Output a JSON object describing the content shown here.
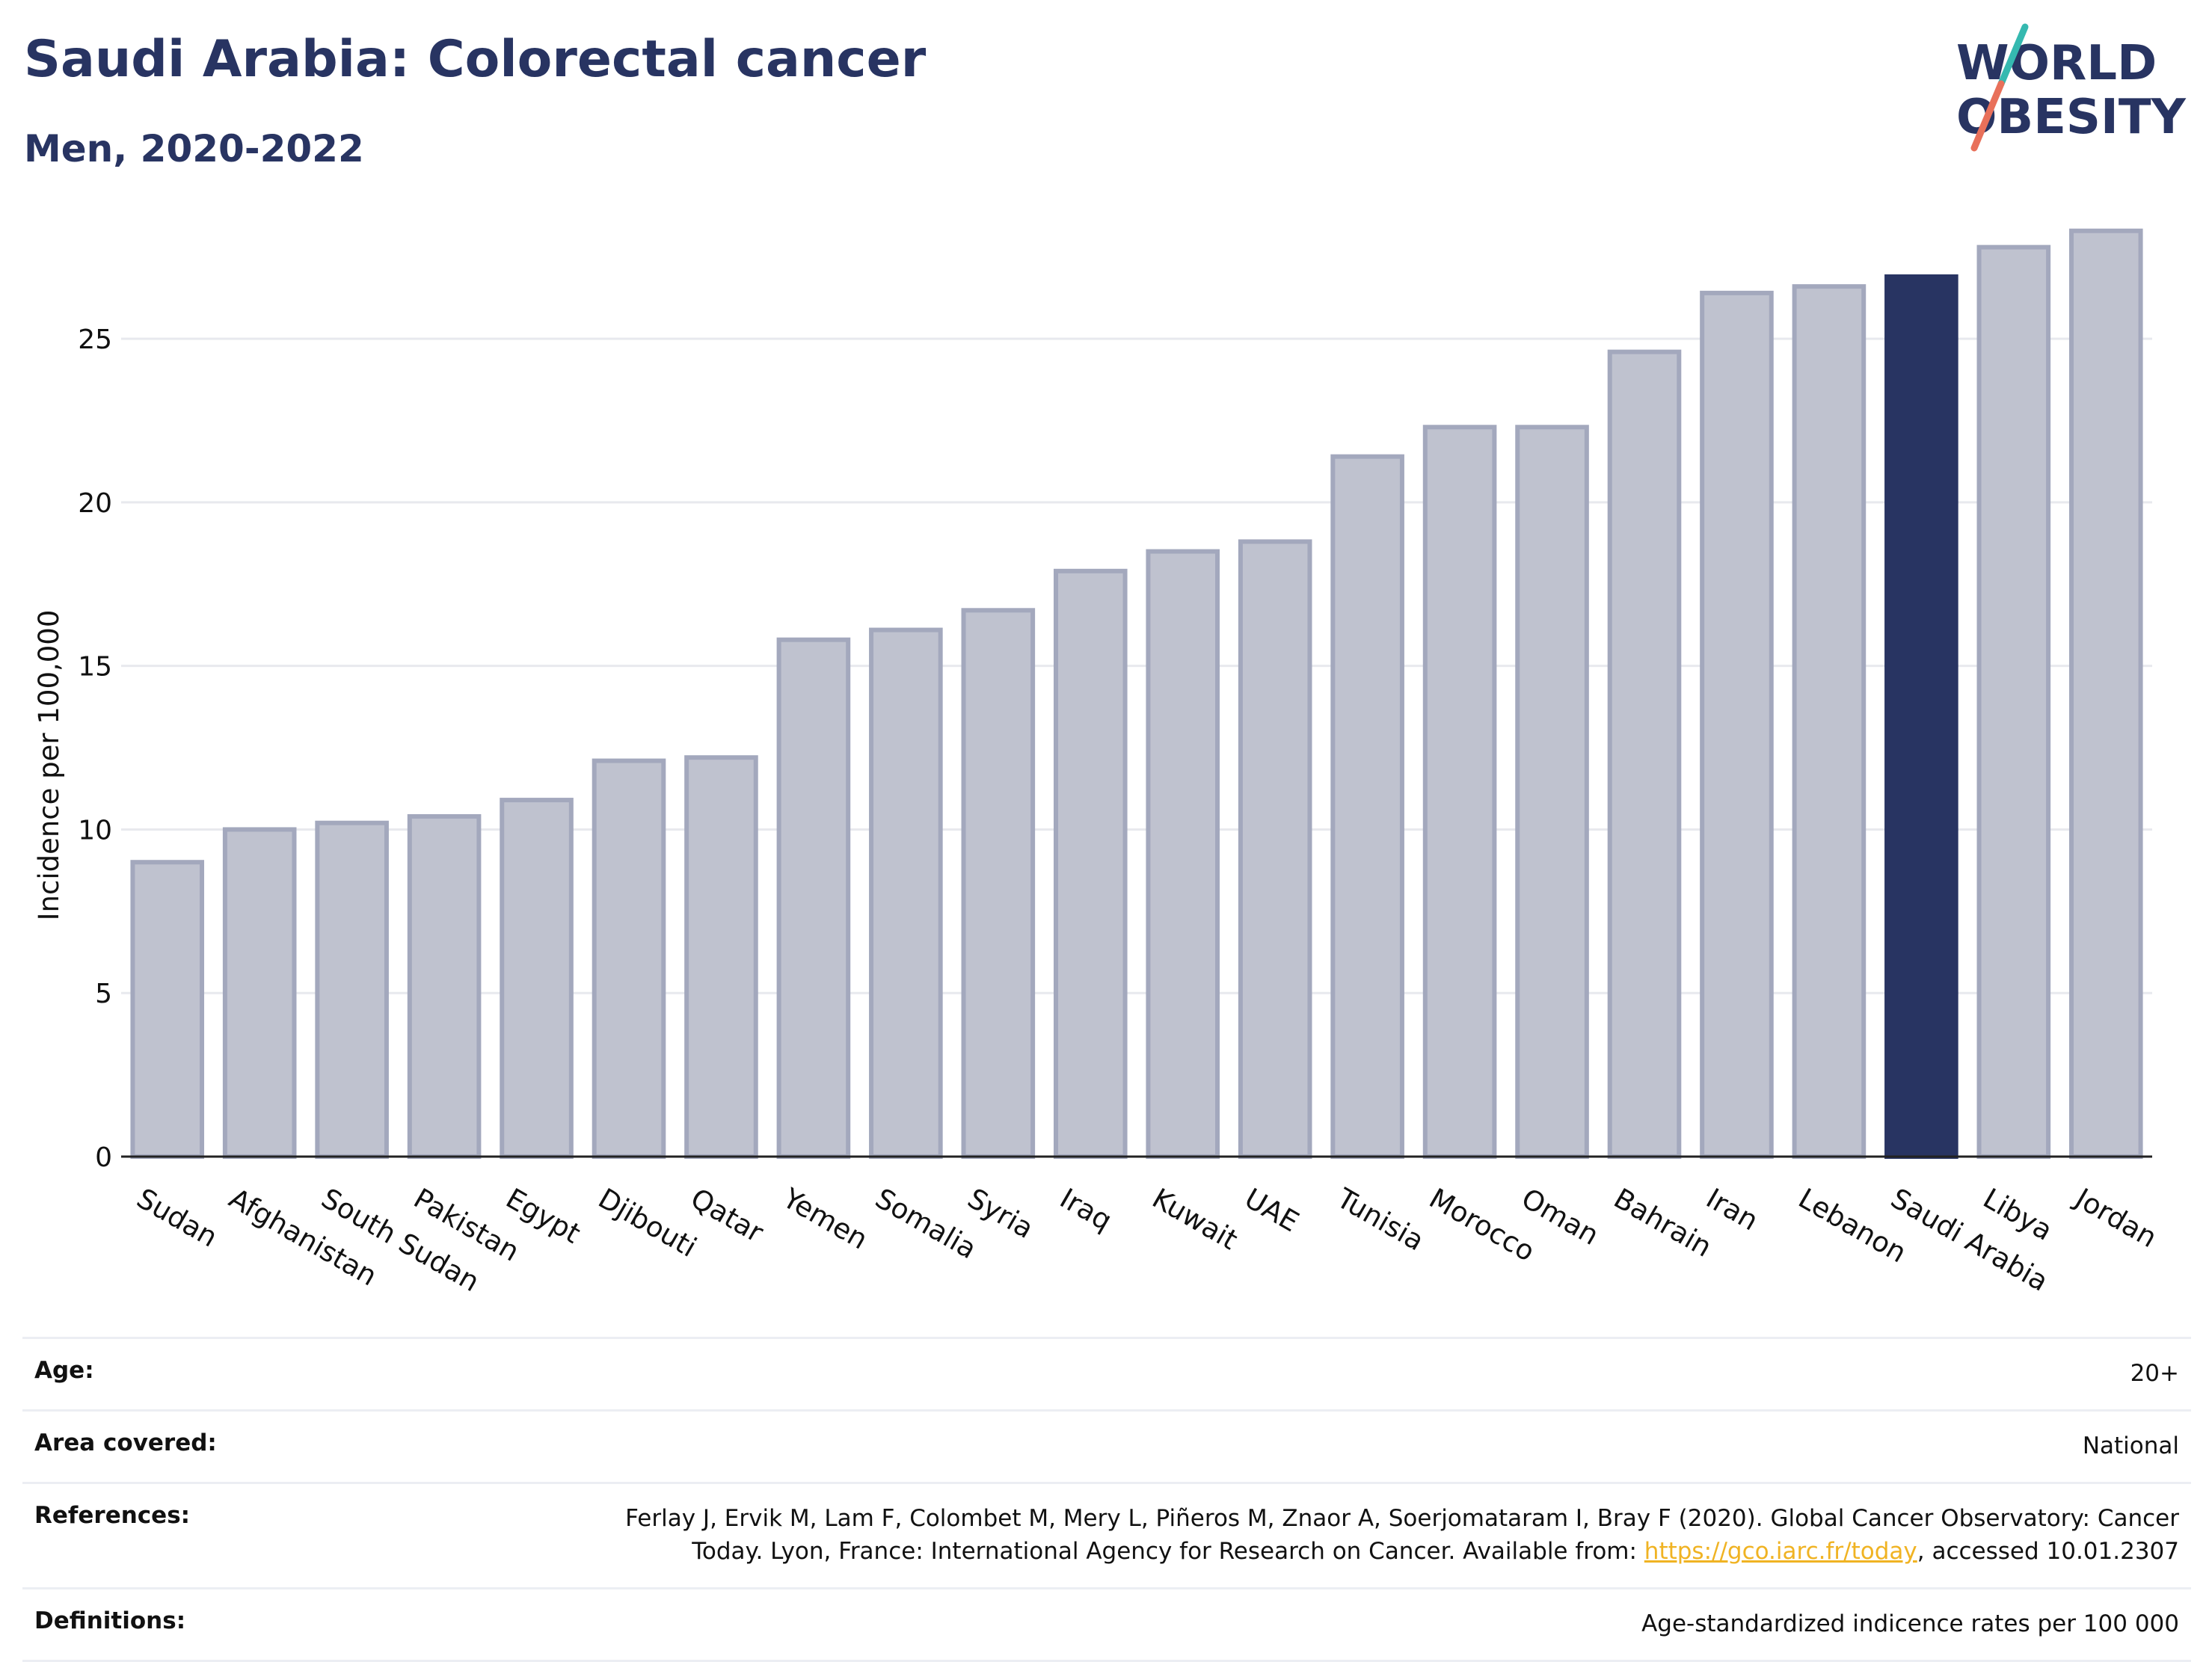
{
  "header": {
    "title": "Saudi Arabia: Colorectal cancer",
    "subtitle": "Men, 2020-2022"
  },
  "logo": {
    "line1": "WORLD",
    "line2": "OBESITY",
    "colors": {
      "text": "#283462",
      "slash_teal": "#35b9b0",
      "slash_coral": "#e8705a"
    }
  },
  "chart_data": {
    "type": "bar",
    "categories": [
      "Sudan",
      "Afghanistan",
      "South Sudan",
      "Pakistan",
      "Egypt",
      "Djibouti",
      "Qatar",
      "Yemen",
      "Somalia",
      "Syria",
      "Iraq",
      "Kuwait",
      "UAE",
      "Tunisia",
      "Morocco",
      "Oman",
      "Bahrain",
      "Iran",
      "Lebanon",
      "Saudi Arabia",
      "Libya",
      "Jordan"
    ],
    "values": [
      9.0,
      10.0,
      10.2,
      10.4,
      10.9,
      12.1,
      12.2,
      15.8,
      16.1,
      16.7,
      17.9,
      18.5,
      18.8,
      21.4,
      22.3,
      22.3,
      24.6,
      26.4,
      26.6,
      26.9,
      27.8,
      28.3
    ],
    "highlight": "Saudi Arabia",
    "ylabel": "Incidence per 100,000",
    "xlabel": "",
    "ylim": [
      0,
      28.5
    ],
    "yticks": [
      0,
      5,
      10,
      15,
      20,
      25
    ],
    "grid": true,
    "colors": {
      "bar": "#bfc2cf",
      "bar_edge": "#a3a8bd",
      "highlight": "#283462",
      "grid": "#e8e9ee",
      "axis": "#222222"
    }
  },
  "info": {
    "age_label": "Age:",
    "age_value": "20+",
    "area_label": "Area covered:",
    "area_value": "National",
    "references_label": "References:",
    "references_line1": "Ferlay J, Ervik M, Lam F, Colombet M, Mery L, Piñeros M, Znaor A, Soerjomataram I, Bray F (2020). Global Cancer Observatory: Cancer",
    "references_line2_pre": "Today. Lyon, France: International Agency for Research on Cancer. Available from: ",
    "references_link": "https://gco.iarc.fr/today",
    "references_line2_post": ", accessed 10.01.2307",
    "definitions_label": "Definitions:",
    "definitions_value": "Age-standardized indicence rates per 100 000"
  }
}
